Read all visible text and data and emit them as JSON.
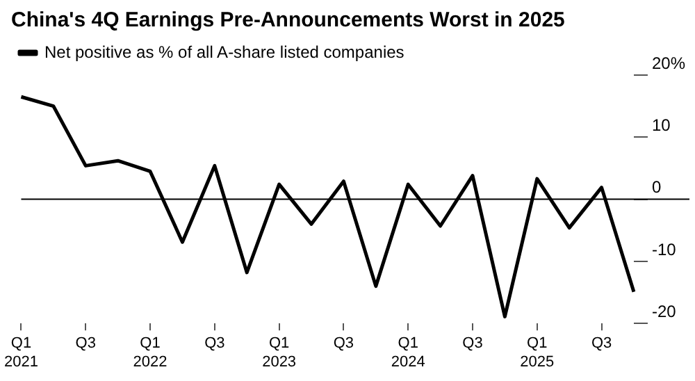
{
  "chart_data": {
    "type": "line",
    "title": "China's 4Q Earnings Pre-Announcements Worst in 2025",
    "categories": [
      "Q1 2021",
      null,
      "Q3",
      null,
      "Q1 2022",
      null,
      "Q3",
      null,
      "Q1 2023",
      null,
      "Q3",
      null,
      "Q1 2024",
      null,
      "Q3",
      null,
      "Q1 2025",
      null,
      "Q3",
      null
    ],
    "series": [
      {
        "name": "Net positive as % of all A-share listed companies",
        "color": "#000000",
        "values": [
          16.5,
          15,
          5.4,
          6.2,
          4.5,
          -6.9,
          5.4,
          -11.8,
          2.4,
          -4,
          2.9,
          -14,
          2.4,
          -4.3,
          3.8,
          -18.9,
          3.3,
          -4.6,
          1.9,
          -14.9
        ]
      }
    ],
    "ylim": [
      -20,
      20
    ],
    "yticks": [
      {
        "value": 20,
        "label": "20%"
      },
      10,
      0,
      -10,
      -20
    ],
    "ref_lines": [
      {
        "axis": "y",
        "value": 0,
        "color": "#000000"
      }
    ],
    "grid": false,
    "legend": "top left",
    "marker": "none",
    "line_style": "solid"
  }
}
